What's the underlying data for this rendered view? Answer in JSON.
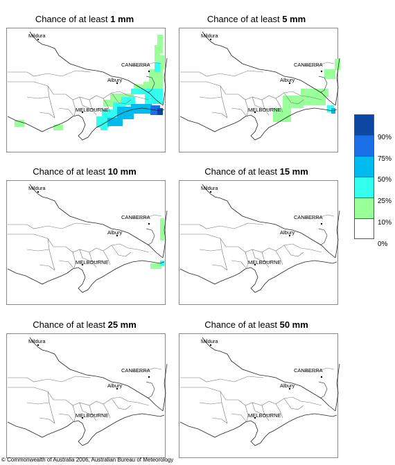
{
  "title_prefix": "Chance of at least ",
  "panels": [
    {
      "amount": "1 mm"
    },
    {
      "amount": "5 mm"
    },
    {
      "amount": "10 mm"
    },
    {
      "amount": "15 mm"
    },
    {
      "amount": "25 mm"
    },
    {
      "amount": "50 mm"
    }
  ],
  "place_labels": {
    "mildura": "Mildura",
    "canberra": "CANBERRA",
    "albury": "Albury",
    "melbourne": "MELBOURNE"
  },
  "legend": {
    "labels": [
      "90%",
      "75%",
      "50%",
      "25%",
      "10%",
      "0%"
    ],
    "colors": [
      "#0d47a1",
      "#1a6fe6",
      "#00bbee",
      "#33ffee",
      "#99ff99",
      "#ffffff"
    ]
  },
  "footer": "© Commonwealth of Australia 2006, Australian Bureau of Meteorology"
}
